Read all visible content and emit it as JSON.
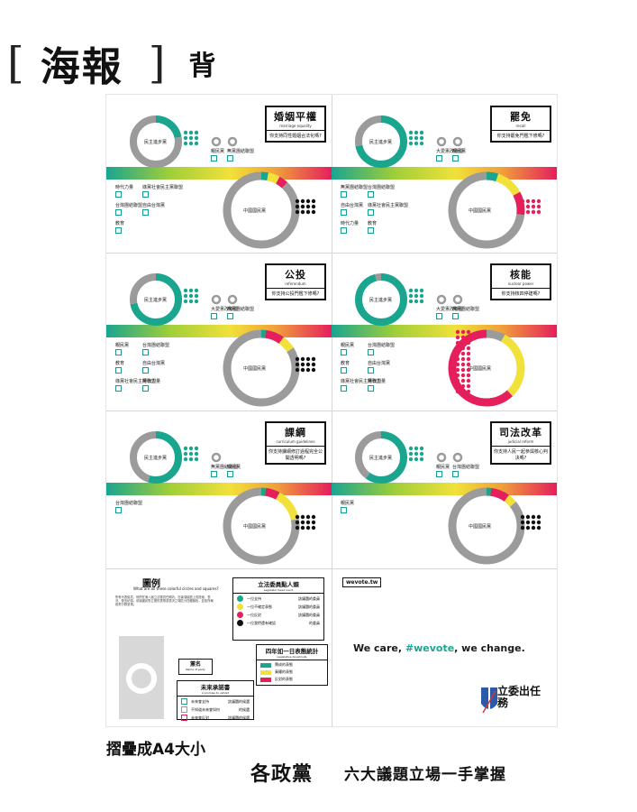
{
  "header": {
    "bracket_open": "[",
    "title": "海報",
    "bracket_close": "]",
    "side": "背"
  },
  "colors": {
    "teal": "#1aa58f",
    "grey": "#9b9b9b",
    "yellow": "#f1e13a",
    "magenta": "#e51f5c",
    "black": "#111111"
  },
  "panels": [
    {
      "zh": "婚姻平權",
      "en": "marriage equality",
      "q": "你支持同性婚姻合法化嗎?",
      "big": "中國國民黨",
      "small": "民主進步黨",
      "labels": [
        "親民黨",
        "無黨團結聯盟",
        "時代力量",
        "綠黨社會民主黨聯盟",
        "台灣團結聯盟",
        "自由台灣黨",
        "教育"
      ]
    },
    {
      "zh": "罷免",
      "en": "recall",
      "q": "你支持罷免門檻下修嗎?",
      "big": "中國國民黨",
      "small": "民主進步黨",
      "labels": [
        "大愛憲改聯盟",
        "親民黨",
        "無黨團結聯盟",
        "台灣團結聯盟",
        "自由台灣黨",
        "綠黨社會民主黨聯盟",
        "時代力量",
        "教育"
      ]
    },
    {
      "zh": "公投",
      "en": "referendum",
      "q": "你支持公投門檻下修嗎?",
      "big": "中國國民黨",
      "small": "民主進步黨",
      "labels": [
        "大愛憲改聯盟",
        "無黨團結聯盟",
        "親民黨",
        "台灣團結聯盟",
        "教育",
        "自由台灣黨",
        "綠黨社會民主黨聯盟",
        "時代力量"
      ]
    },
    {
      "zh": "核能",
      "en": "nuclear power",
      "q": "你支持核四停建嗎?",
      "big": "中國國民黨",
      "small": "民主進步黨",
      "labels": [
        "大愛憲改聯盟",
        "無黨團結聯盟",
        "親民黨",
        "台灣團結聯盟",
        "教育",
        "自由台灣黨",
        "綠黨社會民主黨聯盟",
        "時代力量"
      ]
    },
    {
      "zh": "課綱",
      "en": "curriculum guidelines",
      "q": "你支持課綱修訂過程完全公開透明嗎?",
      "big": "中國國民黨",
      "small": "民主進步黨",
      "labels": [
        "無黨團結聯盟",
        "親民黨",
        "台灣團結聯盟"
      ]
    },
    {
      "zh": "司法改革",
      "en": "judicial reform",
      "q": "你支持人民一起參與核心判決嗎?",
      "big": "中國國民黨",
      "small": "民主進步黨",
      "labels": [
        "親民黨",
        "台灣團結聯盟",
        "親民黨"
      ]
    }
  ],
  "legend": {
    "title": "圖例",
    "subtitle": "What are all these colorful circles and squares?",
    "text": "所有代表議員，他們在第八屆立法委員任期內，在幾項議題上的提案、表決、發言紀錄。依據國民對立委的表態或表決立場區分四種顏色，並依所屬政黨分群呈現。",
    "vote_title": "立法委員點人頭",
    "vote_sub": "Legislator head count",
    "vote_rows": [
      [
        "一位支持",
        "該議題的委員"
      ],
      [
        "一位不確定表態",
        "該議題的委員"
      ],
      [
        "一位反對",
        "該議題的委員"
      ],
      [
        "一位我們還有確認",
        "的委員"
      ]
    ],
    "d_title": "四年如一日表態統計",
    "d_sub": "Legislative doughnuts",
    "d_rows": [
      "贊成的表態",
      "棄權的表態",
      "反對的表態"
    ],
    "party_label": "黨名",
    "party_sub": "Name of party",
    "promise_title": "未來承諾書",
    "promise_sub": "A promise to uphold",
    "promise_rows": [
      [
        "未來會支持",
        "該議題的候選"
      ],
      [
        "不知道未來會如何",
        "的候選"
      ],
      [
        "未來會反對",
        "該議題的候選"
      ]
    ]
  },
  "back": {
    "url": "wevote.tw",
    "slogan_a": "We care, ",
    "slogan_hash": "#wevote",
    "slogan_b": ", we change.",
    "brand": "立委出任務"
  },
  "captions": {
    "fold": "摺疊成A4大小",
    "parties": "各政黨",
    "issues": "六大議題立場一手掌握"
  }
}
